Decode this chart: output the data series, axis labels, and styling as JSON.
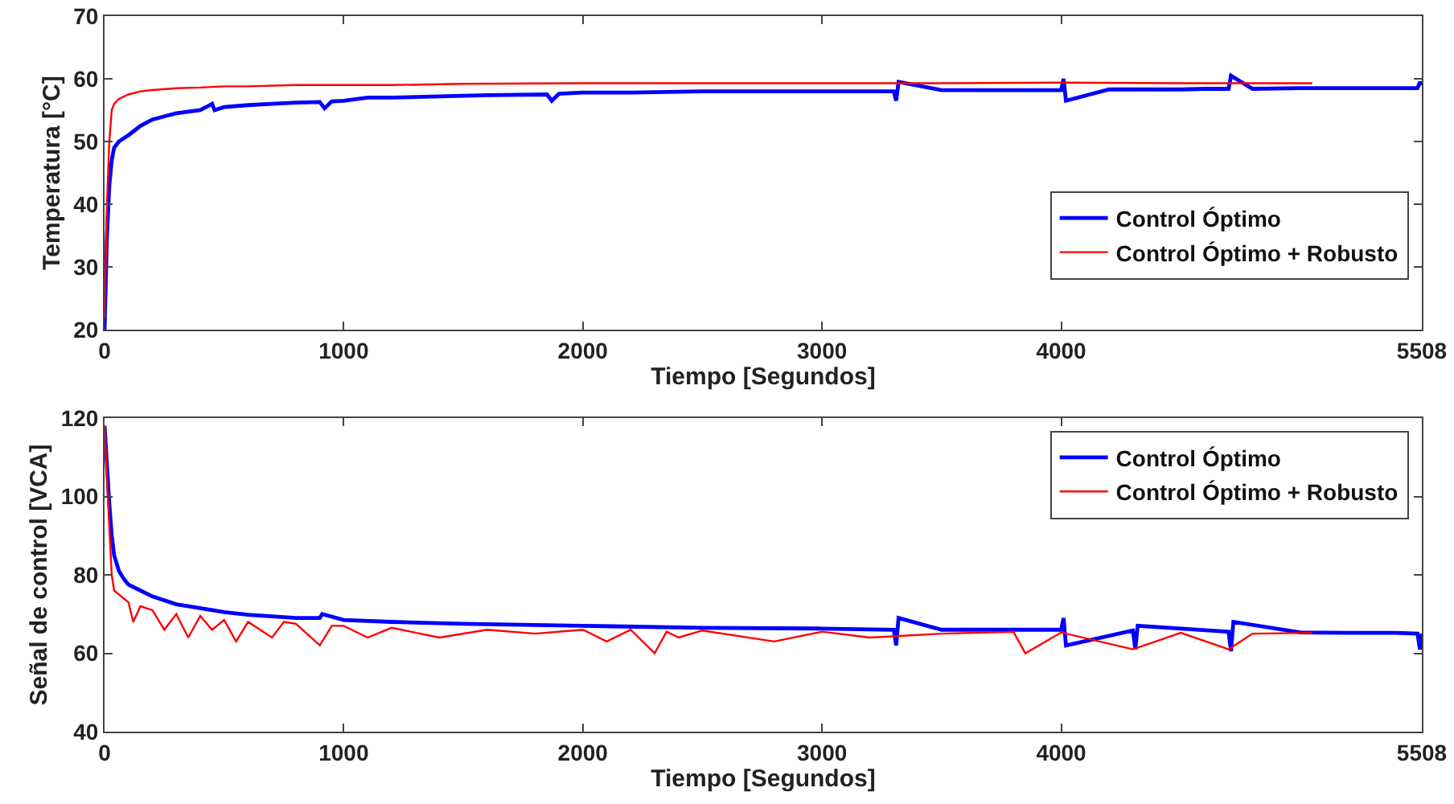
{
  "chart_data": [
    {
      "type": "line",
      "xlabel": "Tiempo [Segundos]",
      "ylabel": "Temperatura [°C]",
      "xlim": [
        0,
        5508
      ],
      "xticks": [
        0,
        1000,
        2000,
        3000,
        4000,
        5508
      ],
      "ylim": [
        20,
        70
      ],
      "yticks": [
        20,
        30,
        40,
        50,
        60,
        70
      ],
      "grid": false,
      "legend": "right",
      "line_style": "solid",
      "marker": "none",
      "series": [
        {
          "name": "Control Óptimo",
          "color": "#0000ff",
          "x": [
            0,
            10,
            20,
            30,
            40,
            60,
            80,
            100,
            150,
            200,
            250,
            300,
            400,
            450,
            460,
            500,
            600,
            700,
            800,
            900,
            920,
            950,
            1000,
            1100,
            1200,
            1400,
            1600,
            1850,
            1870,
            1900,
            2000,
            2200,
            2500,
            2800,
            3000,
            3300,
            3310,
            3320,
            3500,
            3700,
            4000,
            4010,
            4020,
            4200,
            4400,
            4500,
            4600,
            4700,
            4710,
            4800,
            5000,
            5200,
            5400,
            5490,
            5500,
            5508
          ],
          "values": [
            20,
            35,
            43,
            47,
            49,
            50,
            50.5,
            51,
            52.5,
            53.5,
            54,
            54.5,
            55,
            56,
            55,
            55.5,
            55.8,
            56,
            56.2,
            56.3,
            55.3,
            56.4,
            56.5,
            57,
            57,
            57.2,
            57.4,
            57.5,
            56.5,
            57.6,
            57.8,
            57.8,
            58,
            58,
            58,
            58,
            56.5,
            59.5,
            58.2,
            58.2,
            58.2,
            60,
            56.5,
            58.3,
            58.3,
            58.3,
            58.4,
            58.4,
            60.5,
            58.4,
            58.5,
            58.5,
            58.5,
            58.5,
            59.5,
            59
          ]
        },
        {
          "name": "Control Óptimo + Robusto",
          "color": "#ff0000",
          "x": [
            0,
            10,
            20,
            30,
            40,
            60,
            100,
            150,
            200,
            300,
            400,
            500,
            600,
            800,
            1000,
            1200,
            1500,
            2000,
            2500,
            3000,
            3500,
            4000,
            4500,
            5050
          ],
          "values": [
            22,
            40,
            50,
            55,
            56,
            56.8,
            57.5,
            58,
            58.2,
            58.5,
            58.6,
            58.8,
            58.8,
            59,
            59,
            59,
            59.2,
            59.3,
            59.3,
            59.3,
            59.3,
            59.4,
            59.3,
            59.3
          ]
        }
      ]
    },
    {
      "type": "line",
      "xlabel": "Tiempo [Segundos]",
      "ylabel": "Señal de control [VCA]",
      "xlim": [
        0,
        5508
      ],
      "xticks": [
        0,
        1000,
        2000,
        3000,
        4000,
        5508
      ],
      "ylim": [
        40,
        120
      ],
      "yticks": [
        40,
        60,
        80,
        100,
        120
      ],
      "grid": false,
      "legend": "top right",
      "line_style": "solid",
      "marker": "none",
      "series": [
        {
          "name": "Control Óptimo",
          "color": "#0000ff",
          "x": [
            0,
            10,
            20,
            30,
            40,
            60,
            80,
            100,
            150,
            200,
            300,
            400,
            500,
            600,
            800,
            900,
            910,
            1000,
            1200,
            1500,
            2000,
            2500,
            3000,
            3300,
            3310,
            3320,
            3500,
            4000,
            4010,
            4020,
            4300,
            4310,
            4320,
            4700,
            4710,
            4720,
            5000,
            5200,
            5400,
            5490,
            5500,
            5508
          ],
          "values": [
            118,
            108,
            98,
            90,
            85,
            81,
            79,
            77.5,
            76,
            74.5,
            72.5,
            71.5,
            70.5,
            69.8,
            69,
            69,
            70,
            68.5,
            68,
            67.5,
            67,
            66.5,
            66.3,
            66,
            62,
            69,
            66,
            66,
            69,
            62,
            65.8,
            61,
            67,
            65.5,
            60.5,
            68,
            65.3,
            65.2,
            65.2,
            65,
            61,
            65
          ]
        },
        {
          "name": "Control Óptimo + Robusto",
          "color": "#ff0000",
          "x": [
            0,
            10,
            20,
            30,
            40,
            60,
            80,
            100,
            120,
            150,
            200,
            250,
            300,
            350,
            400,
            450,
            500,
            550,
            600,
            700,
            750,
            800,
            900,
            950,
            1000,
            1100,
            1200,
            1400,
            1600,
            1800,
            2000,
            2100,
            2200,
            2300,
            2350,
            2400,
            2500,
            2800,
            3000,
            3200,
            3500,
            3800,
            3850,
            4000,
            4300,
            4500,
            4700,
            4800,
            5050
          ],
          "values": [
            118,
            105,
            92,
            80,
            76,
            75,
            74,
            73,
            68,
            72,
            71,
            66,
            70,
            64,
            69.5,
            66,
            68.5,
            63,
            68,
            64,
            68,
            67.5,
            62,
            67,
            67,
            64,
            66.5,
            64,
            66,
            65,
            66,
            63,
            66,
            60,
            65.5,
            64,
            65.8,
            63,
            65.5,
            64,
            65,
            65.5,
            60,
            65.3,
            61,
            65.2,
            61,
            65,
            65.2
          ]
        }
      ]
    }
  ]
}
